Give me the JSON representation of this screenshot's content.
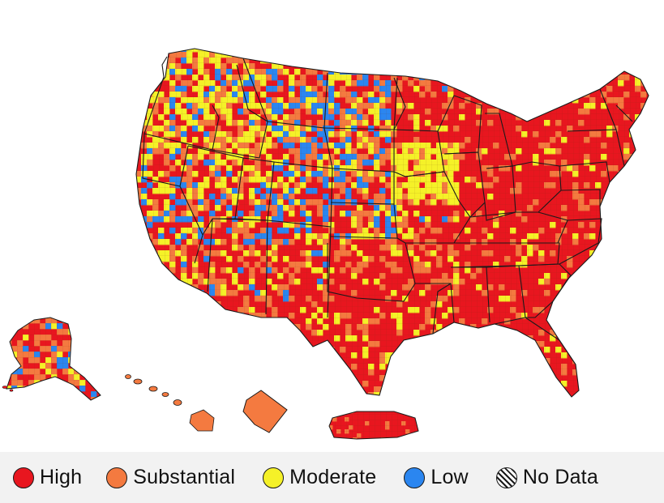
{
  "map": {
    "colors": {
      "High": "#e8161f",
      "Substantial": "#f47a40",
      "Moderate": "#f5f128",
      "Low": "#2b86f0",
      "NoData": "hatched",
      "border": "#1a1a1a"
    }
  },
  "legend": {
    "items": [
      {
        "label": "High",
        "color": "#e8161f",
        "icon": "filled-circle"
      },
      {
        "label": "Substantial",
        "color": "#f47a40",
        "icon": "filled-circle"
      },
      {
        "label": "Moderate",
        "color": "#f5f128",
        "icon": "filled-circle"
      },
      {
        "label": "Low",
        "color": "#2b86f0",
        "icon": "filled-circle"
      },
      {
        "label": "No Data",
        "color": "hatched",
        "icon": "hatched-circle"
      }
    ]
  }
}
